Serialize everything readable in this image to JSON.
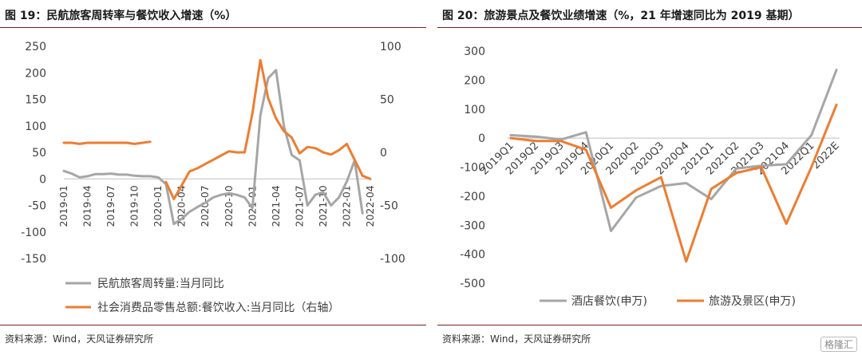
{
  "left": {
    "title": "图 19：民航旅客周转率与餐饮收入增速（%）",
    "source": "资料来源：Wind，天风证券研究所"
  },
  "right": {
    "title": "图 20：旅游景点及餐饮业绩增速（%，21 年增速同比为 2019 基期）",
    "source": "资料来源：Wind，天风证券研究所"
  },
  "watermark": "格隆汇",
  "colors": {
    "gray": "#a6a6a6",
    "orange": "#ed7d31"
  },
  "chart_data": [
    {
      "type": "line",
      "x_ticks": [
        "2019-01",
        "2019-04",
        "2019-07",
        "2019-10",
        "2020-01",
        "2020-04",
        "2020-07",
        "2020-10",
        "2021-01",
        "2021-04",
        "2021-07",
        "2021-10",
        "2022-01",
        "2022-04"
      ],
      "left_yticks": [
        "250",
        "200",
        "150",
        "100",
        "50",
        "0",
        "-50",
        "-100",
        "-150"
      ],
      "right_yticks": [
        "100",
        "50",
        "0",
        "-50",
        "-100"
      ],
      "ylim_left": [
        -150,
        250
      ],
      "ylim_right": [
        -100,
        100
      ],
      "legend_position": "bottom-left",
      "series": [
        {
          "name": "民航旅客周转量:当月同比",
          "color": "#a6a6a6",
          "axis": "left",
          "values": [
            15,
            10,
            3,
            5,
            9,
            9,
            10,
            8,
            8,
            6,
            5,
            5,
            3,
            -10,
            -85,
            -75,
            -62,
            -53,
            -45,
            -35,
            -30,
            -27,
            -30,
            -35,
            -55,
            120,
            190,
            205,
            100,
            45,
            35,
            -50,
            -30,
            -25,
            -50,
            -35,
            -5,
            35,
            -65,
            null
          ]
        },
        {
          "name": "社会消费品零售总额:餐饮收入:当月同比（右轴）",
          "color": "#ed7d31",
          "axis": "right",
          "values": [
            9,
            9,
            8,
            9,
            9,
            9,
            9,
            9,
            9,
            8,
            9,
            10,
            null,
            -28,
            -44,
            -31,
            -18,
            -15,
            -11,
            -7,
            -3,
            1,
            0,
            0,
            37,
            87,
            51,
            32,
            20,
            14,
            -1,
            5,
            4,
            0,
            -2,
            2,
            8,
            -7,
            -22,
            -25
          ]
        }
      ]
    },
    {
      "type": "line",
      "categories": [
        "2019Q1",
        "2019Q2",
        "2019Q3",
        "2019Q4",
        "2020Q1",
        "2020Q2",
        "2020Q3",
        "2020Q4",
        "2021Q1",
        "2021Q2",
        "2021Q3",
        "2021Q4",
        "2022Q1",
        "2022E"
      ],
      "yticks": [
        "300",
        "200",
        "100",
        "0",
        "-100",
        "-200",
        "-300",
        "-400",
        "-500"
      ],
      "ylim": [
        -500,
        300
      ],
      "legend_position": "bottom",
      "series": [
        {
          "name": "酒店餐饮(申万)",
          "color": "#a6a6a6",
          "values": [
            10,
            5,
            -5,
            20,
            -320,
            -205,
            -165,
            -155,
            -210,
            -105,
            -95,
            -90,
            10,
            235
          ]
        },
        {
          "name": "旅游及景区(申万)",
          "color": "#ed7d31",
          "values": [
            0,
            -10,
            -10,
            -40,
            -240,
            -180,
            -135,
            -425,
            -175,
            -120,
            -100,
            -295,
            -100,
            115
          ]
        }
      ]
    }
  ]
}
